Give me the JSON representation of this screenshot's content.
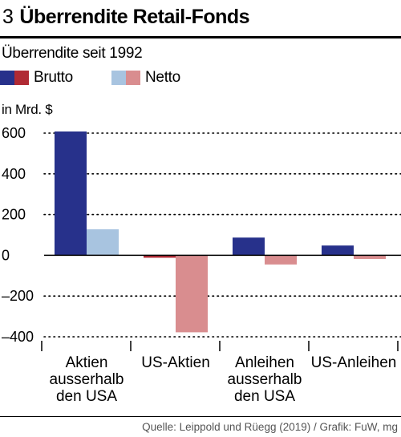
{
  "header": {
    "number": "3",
    "title": "Überrendite Retail-Fonds"
  },
  "subtitle": "Überrendite seit 1992",
  "legend": [
    {
      "label": "Brutto",
      "colors": [
        "#27318b",
        "#b02a34"
      ]
    },
    {
      "label": "Netto",
      "colors": [
        "#a8c4e0",
        "#d98d8f"
      ]
    }
  ],
  "colors": {
    "brutto_positive": "#27318b",
    "brutto_negative": "#b02a34",
    "netto_positive": "#a8c4e0",
    "netto_negative": "#d98d8f"
  },
  "source": "Quelle: Leippold und Rüegg (2019) / Grafik: FuW, mg",
  "chart_data": {
    "type": "bar",
    "ylabel": "in Mrd. $",
    "ylim": [
      -400,
      600
    ],
    "yticks": [
      600,
      400,
      200,
      0,
      -200,
      -400
    ],
    "ytick_labels": [
      "600",
      "400",
      "200",
      "0",
      "–200",
      "–400"
    ],
    "grid": "dotted horizontal",
    "legend_position": "top-left",
    "categories": [
      [
        "Aktien",
        "ausserhalb",
        "den USA"
      ],
      [
        "US-Aktien"
      ],
      [
        "Anleihen",
        "ausserhalb",
        "den USA"
      ],
      [
        "US-Anleihen"
      ]
    ],
    "series": [
      {
        "name": "Brutto",
        "values": [
          608,
          -12,
          87,
          48
        ]
      },
      {
        "name": "Netto",
        "values": [
          128,
          -378,
          -45,
          -18
        ]
      }
    ]
  }
}
